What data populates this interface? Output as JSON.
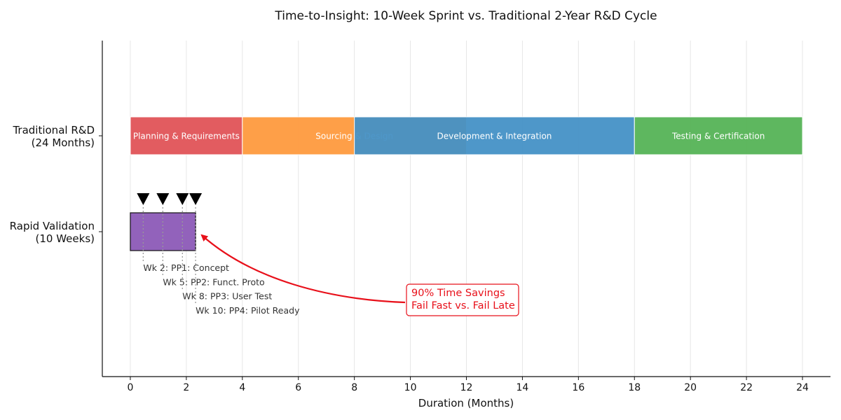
{
  "chart_data": {
    "type": "gantt",
    "title": "Time-to-Insight: 10-Week Sprint vs. Traditional 2-Year R&D Cycle",
    "xlabel": "Duration (Months)",
    "xlim": [
      -1,
      25
    ],
    "xticks": [
      0,
      2,
      4,
      6,
      8,
      10,
      12,
      14,
      16,
      18,
      20,
      22,
      24
    ],
    "grid": "vertical",
    "rows": [
      {
        "id": "traditional",
        "label_lines": [
          "Traditional R&D",
          "(24 Months)"
        ],
        "segments": [
          {
            "label": "Planning & Requirements",
            "start": 0,
            "end": 4,
            "color": "#e05357"
          },
          {
            "label": "Sourcing & Design",
            "start": 4,
            "end": 12,
            "color": "#fe9a3e"
          },
          {
            "label": "Development & Integration",
            "start": 8,
            "end": 18,
            "color": "#4591c6"
          },
          {
            "label": "Testing & Certification",
            "start": 18,
            "end": 24,
            "color": "#55b356"
          }
        ]
      },
      {
        "id": "rapid",
        "label_lines": [
          "Rapid Validation",
          "(10 Weeks)"
        ],
        "segments": [
          {
            "label": "",
            "start": 0,
            "end": 2.33,
            "color": "#9262bb"
          }
        ],
        "milestones": [
          {
            "x": 0.46,
            "label": "Wk 2: PP1: Concept"
          },
          {
            "x": 1.16,
            "label": "Wk 5: PP2: Funct. Proto"
          },
          {
            "x": 1.86,
            "label": "Wk 8: PP3: User Test"
          },
          {
            "x": 2.33,
            "label": "Wk 10: PP4: Pilot Ready"
          }
        ]
      }
    ],
    "annotation": {
      "lines": [
        "90% Time Savings",
        "Fail Fast vs. Fail Late"
      ],
      "color": "#e8101a",
      "arrow_to": {
        "x": 2.5,
        "row": "rapid"
      }
    }
  }
}
